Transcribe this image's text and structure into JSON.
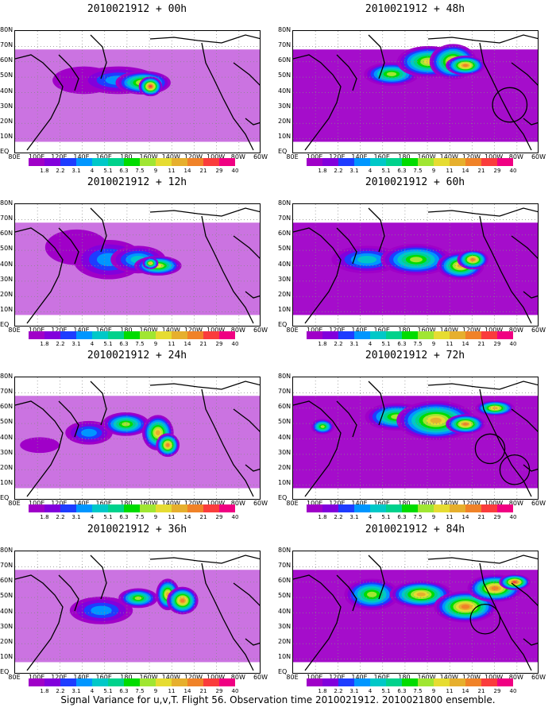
{
  "caption": "Signal Variance for u,v,T. Flight 56. Observation time 2010021912. 2010021800 ensemble.",
  "colorbar": {
    "labels": [
      "1.8",
      "2.2",
      "3.1",
      "4",
      "5.1",
      "6.3",
      "7.5",
      "9",
      "11",
      "14",
      "21",
      "29",
      "40"
    ],
    "colors": [
      "#a000c8",
      "#8200dc",
      "#1e3cff",
      "#0096ff",
      "#00c8c8",
      "#00d28c",
      "#00dc00",
      "#a0e632",
      "#e6dc32",
      "#e6af2d",
      "#f08228",
      "#fa3c3c",
      "#f00082"
    ]
  },
  "y_tick_labels": [
    "80N",
    "70N",
    "60N",
    "50N",
    "40N",
    "30N",
    "20N",
    "10N",
    "EQ"
  ],
  "x_tick_labels": [
    "80E",
    "100E",
    "120E",
    "140E",
    "160E",
    "180",
    "160W",
    "140W",
    "120W",
    "100W",
    "80W",
    "60W"
  ],
  "chart_data": [
    {
      "type": "heatmap",
      "title": "2010021912 + 00h",
      "blobs": [
        [
          0.28,
          0.4,
          0.08,
          0.07,
          2
        ],
        [
          0.42,
          0.4,
          0.1,
          0.07,
          4
        ],
        [
          0.52,
          0.42,
          0.07,
          0.06,
          11
        ],
        [
          0.55,
          0.45,
          0.03,
          0.05,
          29
        ]
      ],
      "circles": []
    },
    {
      "type": "heatmap",
      "title": "2010021912 + 12h",
      "blobs": [
        [
          0.25,
          0.35,
          0.08,
          0.09,
          2
        ],
        [
          0.38,
          0.45,
          0.09,
          0.1,
          4
        ],
        [
          0.5,
          0.45,
          0.07,
          0.07,
          6
        ],
        [
          0.58,
          0.5,
          0.06,
          0.05,
          11
        ],
        [
          0.55,
          0.48,
          0.02,
          0.03,
          14
        ]
      ],
      "circles": []
    },
    {
      "type": "heatmap",
      "title": "2010021912 + 24h",
      "blobs": [
        [
          0.1,
          0.55,
          0.05,
          0.04,
          2
        ],
        [
          0.3,
          0.45,
          0.06,
          0.06,
          4
        ],
        [
          0.45,
          0.38,
          0.06,
          0.06,
          9
        ],
        [
          0.58,
          0.45,
          0.04,
          0.09,
          14
        ],
        [
          0.62,
          0.55,
          0.03,
          0.06,
          21
        ]
      ],
      "circles": []
    },
    {
      "type": "heatmap",
      "title": "2010021912 + 36h",
      "blobs": [
        [
          0.35,
          0.48,
          0.08,
          0.07,
          4
        ],
        [
          0.5,
          0.38,
          0.05,
          0.05,
          9
        ],
        [
          0.62,
          0.35,
          0.03,
          0.08,
          14
        ],
        [
          0.68,
          0.4,
          0.04,
          0.07,
          21
        ]
      ],
      "circles": []
    },
    {
      "type": "heatmap",
      "title": "2010021912 + 48h",
      "blobs": [
        [
          0.4,
          0.35,
          0.07,
          0.06,
          9
        ],
        [
          0.55,
          0.25,
          0.08,
          0.08,
          11
        ],
        [
          0.65,
          0.25,
          0.06,
          0.09,
          14
        ],
        [
          0.7,
          0.28,
          0.05,
          0.05,
          21
        ]
      ],
      "circles": [
        [
          0.88,
          0.6,
          0.07
        ]
      ]
    },
    {
      "type": "heatmap",
      "title": "2010021912 + 60h",
      "blobs": [
        [
          0.3,
          0.45,
          0.09,
          0.07,
          6
        ],
        [
          0.5,
          0.45,
          0.09,
          0.08,
          9
        ],
        [
          0.68,
          0.5,
          0.06,
          0.07,
          14
        ],
        [
          0.73,
          0.45,
          0.04,
          0.05,
          21
        ]
      ],
      "circles": []
    },
    {
      "type": "heatmap",
      "title": "2010021912 + 72h",
      "blobs": [
        [
          0.12,
          0.4,
          0.03,
          0.04,
          9
        ],
        [
          0.42,
          0.32,
          0.08,
          0.07,
          9
        ],
        [
          0.58,
          0.35,
          0.1,
          0.1,
          14
        ],
        [
          0.7,
          0.38,
          0.05,
          0.05,
          21
        ],
        [
          0.82,
          0.25,
          0.05,
          0.04,
          14
        ]
      ],
      "circles": [
        [
          0.8,
          0.58,
          0.06
        ],
        [
          0.9,
          0.75,
          0.06
        ]
      ]
    },
    {
      "type": "heatmap",
      "title": "2010021912 + 84h",
      "blobs": [
        [
          0.32,
          0.35,
          0.07,
          0.08,
          9
        ],
        [
          0.52,
          0.35,
          0.08,
          0.07,
          14
        ],
        [
          0.7,
          0.45,
          0.08,
          0.08,
          21
        ],
        [
          0.82,
          0.3,
          0.07,
          0.07,
          21
        ],
        [
          0.9,
          0.25,
          0.04,
          0.04,
          29
        ]
      ],
      "circles": [
        [
          0.78,
          0.55,
          0.06
        ]
      ]
    }
  ]
}
